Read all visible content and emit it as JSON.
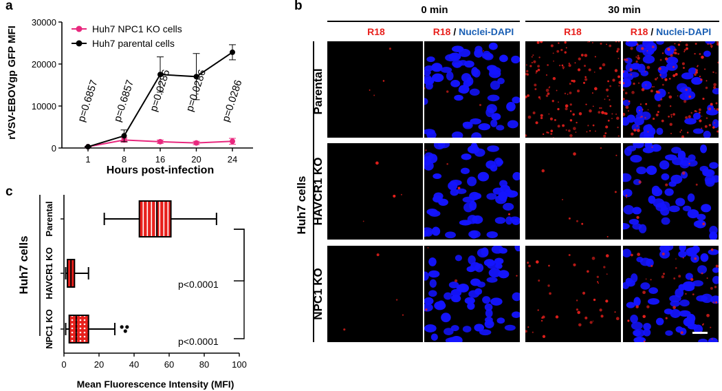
{
  "panel_labels": {
    "a": "a",
    "b": "b",
    "c": "c"
  },
  "colors": {
    "pink": "#e8287e",
    "black": "#000000",
    "red": "#e8201c",
    "blue": "#1a5fb4",
    "dapi": "#1414ff"
  },
  "chart_data": [
    {
      "type": "line",
      "panel": "a",
      "xlabel": "Hours post-infection",
      "ylabel": "rVSV-EBOVgp GFP MFI",
      "categories": [
        "1",
        "8",
        "16",
        "20",
        "24"
      ],
      "ylim": [
        0,
        30000
      ],
      "yticks": [
        "0",
        "10000",
        "20000",
        "30000"
      ],
      "series": [
        {
          "name": "Huh7 NPC1 KO cells",
          "color": "#e8287e",
          "values": [
            300,
            1900,
            1500,
            1200,
            1600
          ],
          "error": [
            100,
            500,
            400,
            400,
            700
          ]
        },
        {
          "name": "Huh7 parental cells",
          "color": "#000000",
          "values": [
            300,
            2900,
            17500,
            17000,
            22800
          ],
          "error": [
            100,
            1400,
            4200,
            5500,
            1800
          ]
        }
      ],
      "annotations": [
        "p=0.6857",
        "p=0.6857",
        "p=0.0286",
        "p=0.0286",
        "p=0.0286"
      ]
    },
    {
      "type": "box",
      "panel": "c",
      "xlabel": "Mean Fluorescence Intensity (MFI)",
      "ylabel": "Huh7 cells",
      "categories": [
        "Parental",
        "HAVCR1 KO",
        "NPC1 KO"
      ],
      "xlim": [
        0,
        100
      ],
      "xticks": [
        "0",
        "20",
        "40",
        "60",
        "80",
        "100"
      ],
      "boxes": [
        {
          "name": "Parental",
          "min": 23,
          "q1": 43,
          "median": 53,
          "q3": 61,
          "max": 87,
          "outliers": []
        },
        {
          "name": "HAVCR1 KO",
          "min": 1,
          "q1": 2,
          "median": 4,
          "q3": 6,
          "max": 14,
          "outliers": []
        },
        {
          "name": "NPC1 KO",
          "min": 1,
          "q1": 3,
          "median": 7,
          "q3": 14,
          "max": 29,
          "outliers": [
            33,
            35,
            36
          ]
        }
      ],
      "annotations": [
        "p<0.0001",
        "p<0.0001"
      ]
    }
  ],
  "panel_b": {
    "time_headers": [
      "0 min",
      "30 min"
    ],
    "col_r18": "R18",
    "col_slash": "/",
    "col_dapi": "Nuclei-DAPI",
    "side_label": "Huh7 cells",
    "rows": [
      "Parental",
      "HAVCR1 KO",
      "NPC1 KO"
    ]
  }
}
